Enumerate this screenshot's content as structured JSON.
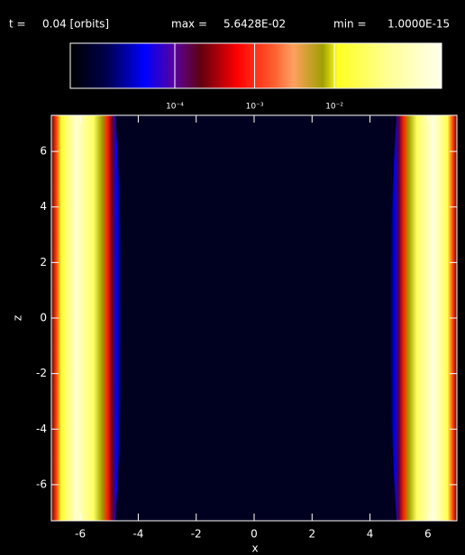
{
  "chart_data": {
    "type": "heatmap",
    "time_label": "t =",
    "time": "0.04 [orbits]",
    "max_label": "max =",
    "max": "5.6428E-02",
    "min_label": "min =",
    "min": "1.0000E-15",
    "xlabel": "x",
    "ylabel": "z",
    "xlim": [
      -7,
      7
    ],
    "ylim": [
      -7.3,
      7.3
    ],
    "xticks": [
      -6,
      -4,
      -2,
      0,
      2,
      4,
      6
    ],
    "yticks": [
      -6,
      -4,
      -2,
      0,
      2,
      4,
      6
    ],
    "colorbar_log": true,
    "clim": [
      4.9e-06,
      0.22
    ],
    "colorbar_ticks": [
      {
        "value": 0.0001,
        "label": "10⁻⁴"
      },
      {
        "value": 0.001,
        "label": "10⁻³"
      },
      {
        "value": 0.01,
        "label": "10⁻²"
      }
    ]
  }
}
